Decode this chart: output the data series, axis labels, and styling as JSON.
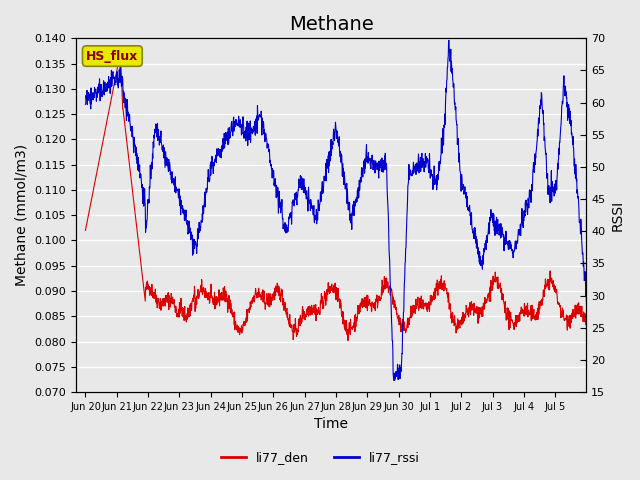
{
  "title": "Methane",
  "ylabel_left": "Methane (mmol/m3)",
  "ylabel_right": "RSSI",
  "xlabel": "Time",
  "ylim_left": [
    0.07,
    0.14
  ],
  "ylim_right": [
    15,
    70
  ],
  "yticks_left": [
    0.07,
    0.075,
    0.08,
    0.085,
    0.09,
    0.095,
    0.1,
    0.105,
    0.11,
    0.115,
    0.12,
    0.125,
    0.13,
    0.135,
    0.14
  ],
  "yticks_right": [
    15,
    20,
    25,
    30,
    35,
    40,
    45,
    50,
    55,
    60,
    65,
    70
  ],
  "xtick_labels": [
    "Jun 20",
    "Jun 21",
    "Jun 22",
    "Jun 23",
    "Jun 24",
    "Jun 25",
    "Jun 26",
    "Jun 27",
    "Jun 28",
    "Jun 29",
    "Jun 30",
    "Jul 1",
    "Jul 2",
    "Jul 3",
    "Jul 4",
    "Jul 5"
  ],
  "color_red": "#dd0000",
  "color_blue": "#0000cc",
  "legend_labels": [
    "li77_den",
    "li77_rssi"
  ],
  "annotation_text": "HS_flux",
  "annotation_color": "#8B0000",
  "annotation_bg": "#e8e800",
  "background_color": "#e8e8e8",
  "grid_color": "#ffffff",
  "title_fontsize": 14,
  "label_fontsize": 10
}
